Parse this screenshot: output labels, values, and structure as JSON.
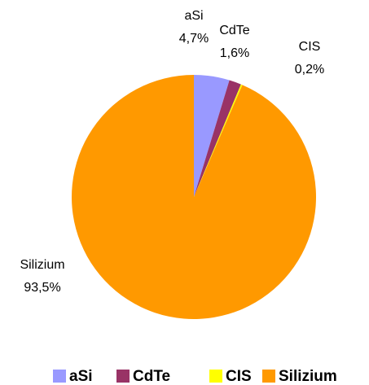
{
  "chart_data": {
    "type": "pie",
    "categories": [
      "aSi",
      "CdTe",
      "CIS",
      "Silizium"
    ],
    "values": [
      4.7,
      1.6,
      0.2,
      93.5
    ],
    "value_labels": [
      "4,7%",
      "1,6%",
      "0,2%",
      "93,5%"
    ],
    "colors": [
      "#9999ff",
      "#993366",
      "#ffff00",
      "#ff9900"
    ],
    "legend": "bottom"
  }
}
